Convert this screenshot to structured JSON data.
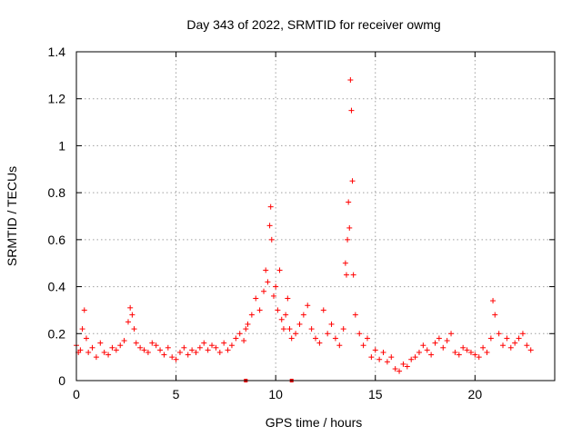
{
  "chart_data": {
    "type": "scatter",
    "title": "Day 343 of 2022, SRMTID for receiver owmg",
    "xlabel": "GPS time / hours",
    "ylabel": "SRMTID / TECUs",
    "xlim": [
      0,
      24
    ],
    "ylim": [
      0,
      1.4
    ],
    "x_ticks": [
      0,
      5,
      10,
      15,
      20
    ],
    "x_tick_labels": [
      "0",
      "5",
      "10",
      "15",
      "20"
    ],
    "y_ticks": [
      0,
      0.2,
      0.4,
      0.6,
      0.8,
      1.0,
      1.2,
      1.4
    ],
    "y_tick_labels": [
      "0",
      "0.2",
      "0.4",
      "0.6",
      "0.8",
      "1",
      "1.2",
      "1.4"
    ],
    "grid": true,
    "marker": "+",
    "color": "#ff0000",
    "series": [
      {
        "name": "SRMTID",
        "x": [
          0.0,
          0.1,
          0.2,
          0.3,
          0.4,
          0.5,
          0.6,
          0.8,
          1.0,
          1.2,
          1.4,
          1.6,
          1.8,
          2.0,
          2.2,
          2.4,
          2.6,
          2.7,
          2.8,
          2.9,
          3.0,
          3.2,
          3.4,
          3.6,
          3.8,
          4.0,
          4.2,
          4.4,
          4.6,
          4.8,
          5.0,
          5.2,
          5.4,
          5.6,
          5.8,
          6.0,
          6.2,
          6.4,
          6.6,
          6.8,
          7.0,
          7.2,
          7.4,
          7.6,
          7.8,
          8.0,
          8.2,
          8.4,
          8.5,
          8.6,
          8.8,
          9.0,
          9.2,
          9.4,
          9.5,
          9.6,
          9.7,
          9.75,
          9.8,
          9.9,
          10.0,
          10.1,
          10.2,
          10.3,
          10.4,
          10.5,
          10.6,
          10.7,
          10.8,
          11.0,
          11.2,
          11.4,
          11.6,
          11.8,
          12.0,
          12.2,
          12.4,
          12.6,
          12.8,
          13.0,
          13.2,
          13.4,
          13.5,
          13.55,
          13.6,
          13.65,
          13.7,
          13.75,
          13.8,
          13.85,
          13.9,
          14.0,
          14.2,
          14.4,
          14.6,
          14.8,
          15.0,
          15.2,
          15.4,
          15.6,
          15.8,
          16.0,
          16.2,
          16.4,
          16.6,
          16.8,
          17.0,
          17.2,
          17.4,
          17.6,
          17.8,
          18.0,
          18.2,
          18.4,
          18.6,
          18.8,
          19.0,
          19.2,
          19.4,
          19.6,
          19.8,
          20.0,
          20.2,
          20.4,
          20.6,
          20.8,
          20.9,
          21.0,
          21.2,
          21.4,
          21.6,
          21.8,
          22.0,
          22.2,
          22.4,
          22.6,
          22.8
        ],
        "y": [
          0.15,
          0.12,
          0.13,
          0.22,
          0.3,
          0.18,
          0.12,
          0.14,
          0.1,
          0.16,
          0.12,
          0.11,
          0.14,
          0.13,
          0.15,
          0.17,
          0.25,
          0.31,
          0.28,
          0.22,
          0.16,
          0.14,
          0.13,
          0.12,
          0.16,
          0.15,
          0.13,
          0.11,
          0.14,
          0.1,
          0.09,
          0.12,
          0.14,
          0.11,
          0.13,
          0.12,
          0.14,
          0.16,
          0.13,
          0.15,
          0.14,
          0.12,
          0.16,
          0.13,
          0.15,
          0.18,
          0.2,
          0.17,
          0.22,
          0.24,
          0.28,
          0.35,
          0.3,
          0.38,
          0.47,
          0.42,
          0.66,
          0.74,
          0.6,
          0.36,
          0.4,
          0.3,
          0.47,
          0.26,
          0.22,
          0.28,
          0.35,
          0.22,
          0.18,
          0.2,
          0.24,
          0.28,
          0.32,
          0.22,
          0.18,
          0.16,
          0.3,
          0.2,
          0.24,
          0.18,
          0.15,
          0.22,
          0.5,
          0.45,
          0.6,
          0.76,
          0.65,
          1.28,
          1.15,
          0.85,
          0.45,
          0.28,
          0.2,
          0.15,
          0.18,
          0.1,
          0.13,
          0.09,
          0.12,
          0.08,
          0.1,
          0.05,
          0.04,
          0.07,
          0.06,
          0.09,
          0.1,
          0.12,
          0.15,
          0.13,
          0.11,
          0.16,
          0.18,
          0.14,
          0.17,
          0.2,
          0.12,
          0.11,
          0.14,
          0.13,
          0.12,
          0.11,
          0.1,
          0.14,
          0.12,
          0.18,
          0.34,
          0.28,
          0.2,
          0.15,
          0.18,
          0.14,
          0.16,
          0.18,
          0.2,
          0.15,
          0.13
        ]
      }
    ],
    "extra_points": {
      "x": [
        8.5,
        10.8
      ],
      "y": [
        0.0,
        0.0
      ]
    }
  }
}
